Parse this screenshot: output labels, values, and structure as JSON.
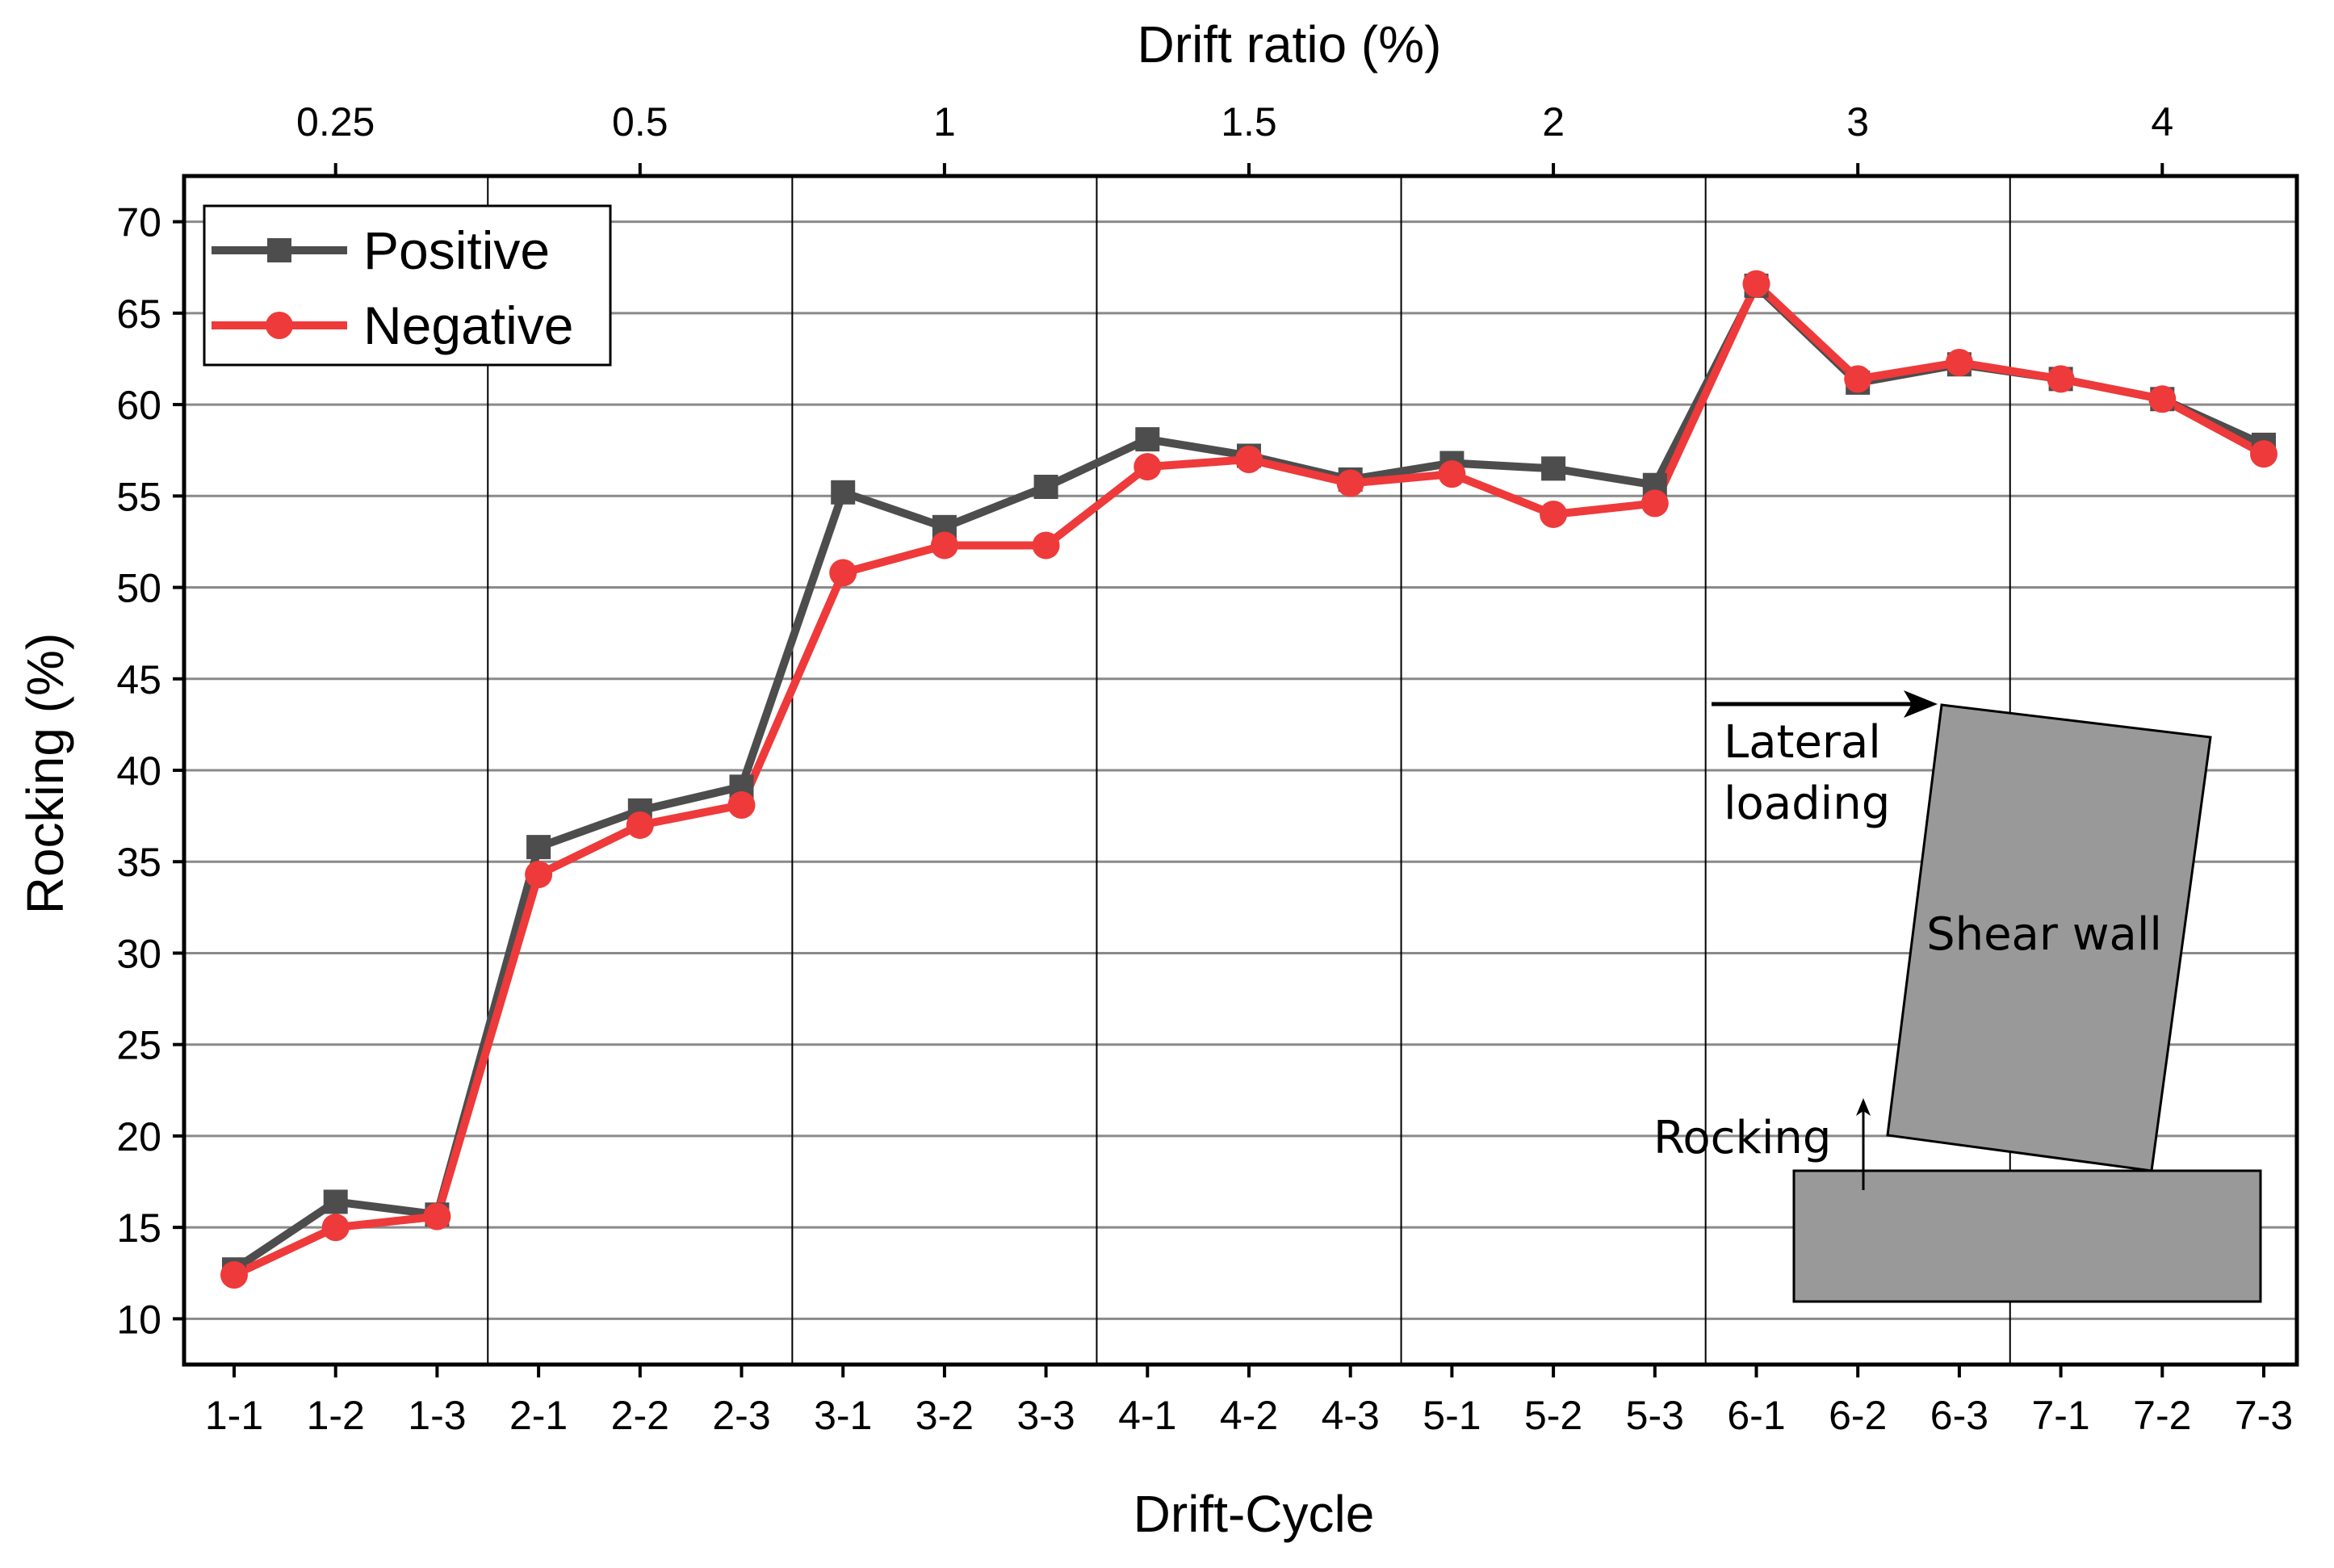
{
  "chart_data": {
    "type": "line",
    "xlabel": "Drift-Cycle",
    "ylabel": "Rocking (%)",
    "top_axis_label": "Drift ratio (%)",
    "categories": [
      "1-1",
      "1-2",
      "1-3",
      "2-1",
      "2-2",
      "2-3",
      "3-1",
      "3-2",
      "3-3",
      "4-1",
      "4-2",
      "4-3",
      "5-1",
      "5-2",
      "5-3",
      "6-1",
      "6-2",
      "6-3",
      "7-1",
      "7-2",
      "7-3"
    ],
    "top_ticks": [
      "0.25",
      "0.5",
      "1",
      "1.5",
      "2",
      "3",
      "4"
    ],
    "ylim": [
      7.5,
      72.5
    ],
    "yticks": [
      10,
      15,
      20,
      25,
      30,
      35,
      40,
      45,
      50,
      55,
      60,
      65,
      70
    ],
    "grid": true,
    "legend_position": "top-left",
    "series": [
      {
        "name": "Positive",
        "color": "#4d4d4d",
        "marker": "square",
        "values": [
          12.7,
          16.4,
          15.7,
          35.8,
          37.8,
          39.1,
          55.2,
          53.3,
          55.5,
          58.1,
          57.2,
          55.9,
          56.8,
          56.5,
          55.6,
          66.5,
          61.2,
          62.2,
          61.4,
          60.3,
          57.8
        ]
      },
      {
        "name": "Negative",
        "color": "#ee3a3a",
        "marker": "circle",
        "values": [
          12.4,
          15.0,
          15.6,
          34.3,
          37.0,
          38.1,
          50.8,
          52.3,
          52.3,
          56.6,
          57.0,
          55.7,
          56.2,
          54.0,
          54.6,
          66.6,
          61.4,
          62.3,
          61.4,
          60.3,
          57.3
        ]
      }
    ],
    "annotations": {
      "lateral_loading": [
        "Lateral",
        "loading"
      ],
      "shear_wall": "Shear wall",
      "rocking": "Rocking"
    }
  }
}
